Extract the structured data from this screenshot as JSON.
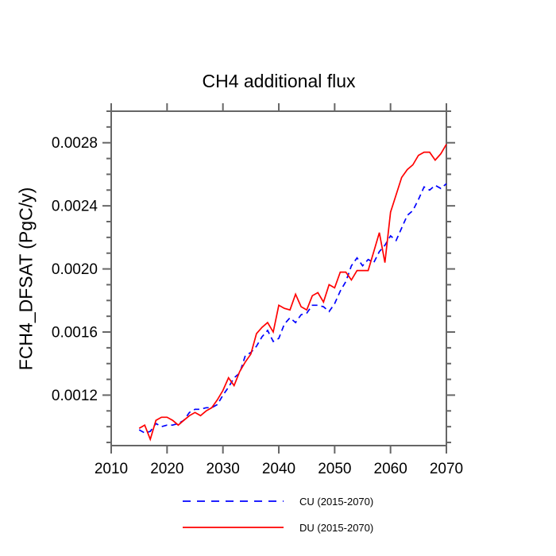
{
  "chart_data": {
    "type": "line",
    "title": "CH4 additional flux",
    "xlabel": "",
    "ylabel": "FCH4_DFSAT  (PgC/y)",
    "xlim": [
      2010,
      2070
    ],
    "ylim": [
      0.00088,
      0.003
    ],
    "grid": false,
    "legend_position": "bottom",
    "axis_color": "#666666",
    "text_color": "#000000",
    "x_axis": {
      "ticks": [
        {
          "value": 2010,
          "label": "2010"
        },
        {
          "value": 2020,
          "label": "2020"
        },
        {
          "value": 2030,
          "label": "2030"
        },
        {
          "value": 2040,
          "label": "2040"
        },
        {
          "value": 2050,
          "label": "2050"
        },
        {
          "value": 2060,
          "label": "2060"
        },
        {
          "value": 2070,
          "label": "2070"
        }
      ]
    },
    "y_axis": {
      "major_ticks": [
        {
          "value": 0.0012,
          "label": "0.0012"
        },
        {
          "value": 0.0016,
          "label": "0.0016"
        },
        {
          "value": 0.002,
          "label": "0.0020"
        },
        {
          "value": 0.0024,
          "label": "0.0024"
        },
        {
          "value": 0.0028,
          "label": "0.0028"
        }
      ],
      "minor_step": 0.0001,
      "minor_range": [
        0.0009,
        0.003
      ]
    },
    "x_start": 2015,
    "x_step": 1,
    "series": [
      {
        "name": "CU (2015-2070)",
        "color": "#0000ff",
        "style": "dashed",
        "values": [
          0.00098,
          0.00096,
          0.00097,
          0.00102,
          0.001,
          0.00101,
          0.00101,
          0.00102,
          0.00104,
          0.00109,
          0.00111,
          0.00111,
          0.00112,
          0.00112,
          0.00114,
          0.0012,
          0.00125,
          0.00131,
          0.00134,
          0.00145,
          0.00147,
          0.00151,
          0.00157,
          0.00161,
          0.00154,
          0.00156,
          0.00165,
          0.00169,
          0.00166,
          0.00171,
          0.00172,
          0.00177,
          0.00177,
          0.00176,
          0.00173,
          0.00178,
          0.00186,
          0.00192,
          0.00202,
          0.00207,
          0.00202,
          0.00206,
          0.00204,
          0.00211,
          0.00215,
          0.00221,
          0.00218,
          0.00226,
          0.00234,
          0.00237,
          0.00244,
          0.00252,
          0.0025,
          0.00253,
          0.00251,
          0.00254
        ]
      },
      {
        "name": "DU (2015-2070)",
        "color": "#ff0000",
        "style": "solid",
        "values": [
          0.00099,
          0.00101,
          0.00092,
          0.00104,
          0.00106,
          0.00106,
          0.00104,
          0.00101,
          0.00104,
          0.00107,
          0.00109,
          0.00107,
          0.0011,
          0.00112,
          0.00117,
          0.00123,
          0.00131,
          0.00126,
          0.00135,
          0.00141,
          0.00146,
          0.00159,
          0.00163,
          0.00166,
          0.0016,
          0.00177,
          0.00175,
          0.00174,
          0.00184,
          0.00176,
          0.00174,
          0.00183,
          0.00185,
          0.00179,
          0.0019,
          0.00188,
          0.00198,
          0.00198,
          0.00193,
          0.00199,
          0.00199,
          0.00199,
          0.00211,
          0.00223,
          0.00204,
          0.00236,
          0.00247,
          0.00258,
          0.00263,
          0.00266,
          0.00272,
          0.00274,
          0.00274,
          0.00269,
          0.00273,
          0.00279
        ]
      }
    ]
  }
}
